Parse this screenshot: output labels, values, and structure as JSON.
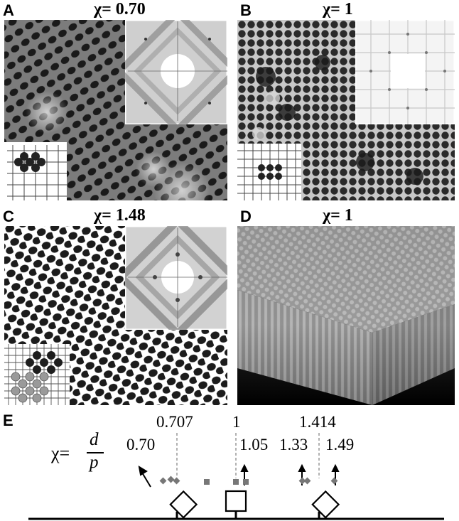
{
  "panels": [
    {
      "letter": "A",
      "title": "χ= 0.70"
    },
    {
      "letter": "B",
      "title": "χ= 1"
    },
    {
      "letter": "C",
      "title": "χ= 1.48"
    },
    {
      "letter": "D",
      "title": "χ= 1"
    }
  ],
  "panel_e": {
    "letter": "E",
    "chi_symbol": "χ=",
    "numerator": "d",
    "denominator": "p",
    "reference_values": [
      "0.707",
      "1",
      "1.414"
    ],
    "measured_values": [
      "0.70",
      "1.05",
      "1.33",
      "1.49"
    ]
  }
}
